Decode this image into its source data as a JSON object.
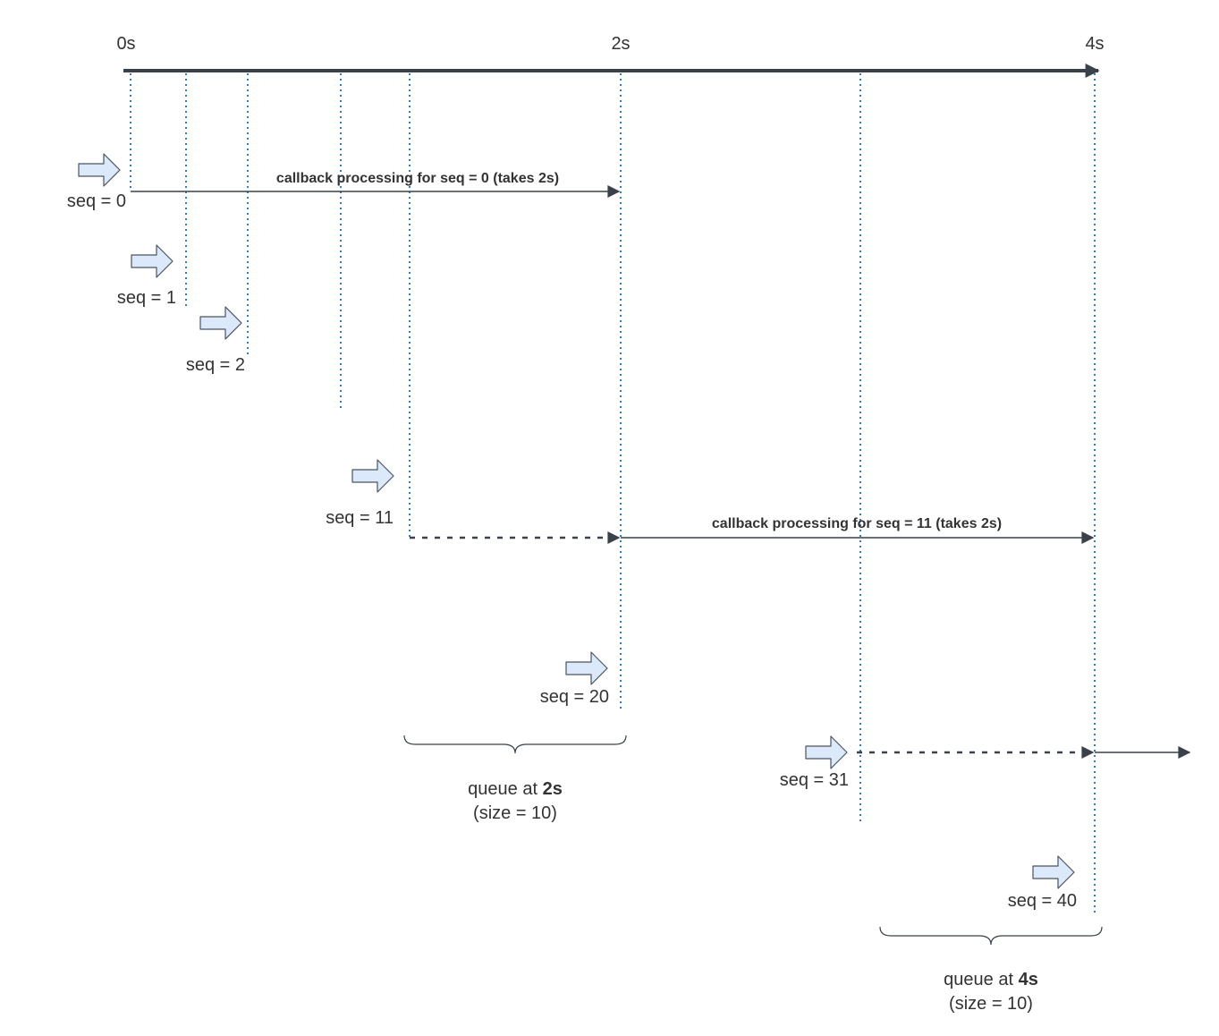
{
  "timeline": {
    "ticks": [
      {
        "label": "0s"
      },
      {
        "label": "2s"
      },
      {
        "label": "4s"
      }
    ]
  },
  "events": [
    {
      "label": "seq = 0"
    },
    {
      "label": "seq = 1"
    },
    {
      "label": "seq = 2"
    },
    {
      "label": "seq = 11"
    },
    {
      "label": "seq = 20"
    },
    {
      "label": "seq = 31"
    },
    {
      "label": "seq = 40"
    }
  ],
  "callbacks": [
    {
      "label": "callback processing for seq = 0 (takes 2s)"
    },
    {
      "label": "callback processing for seq = 11 (takes 2s)"
    }
  ],
  "queues": [
    {
      "prefix": "queue at ",
      "time": "2s",
      "size": "(size = 10)"
    },
    {
      "prefix": "queue at ",
      "time": "4s",
      "size": "(size = 10)"
    }
  ],
  "colors": {
    "axis": "#3a414a",
    "guide": "#2f7fc1",
    "event_arrow_fill": "#dce9fb",
    "event_arrow_stroke": "#4a5560",
    "text": "#333333"
  }
}
